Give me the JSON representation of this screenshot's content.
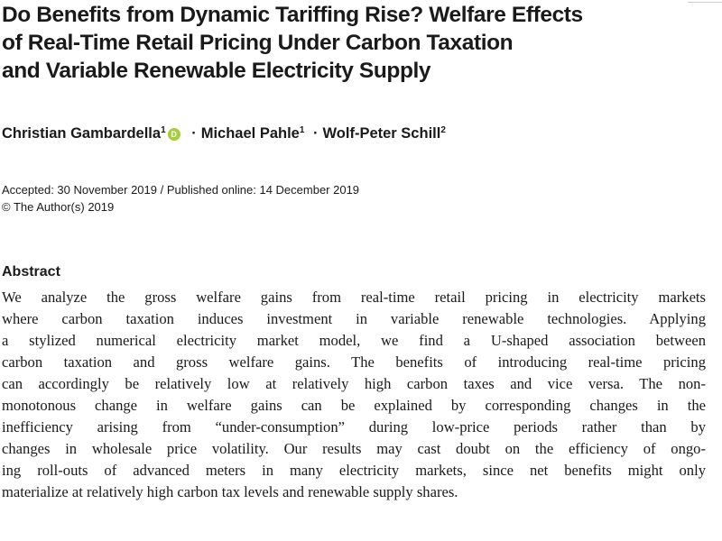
{
  "title_lines": [
    "Do Benefits from Dynamic Tariffing Rise? Welfare Effects",
    "of Real-Time Retail Pricing Under Carbon Taxation",
    "and Variable Renewable Electricity Supply"
  ],
  "authors": [
    {
      "name": "Christian Gambardella",
      "affiliation": "1",
      "orcid_label": "D"
    },
    {
      "name": "Michael Pahle",
      "affiliation": "1"
    },
    {
      "name": "Wolf-Peter Schill",
      "affiliation": "2"
    }
  ],
  "author_separator": "·",
  "dates": {
    "accepted_published": "Accepted: 30 November 2019 / Published online: 14 December 2019",
    "copyright": "© The Author(s) 2019"
  },
  "abstract": {
    "heading": "Abstract",
    "lines": [
      "We analyze the gross welfare gains from real-time retail pricing in electricity markets",
      "where carbon taxation induces investment in variable renewable technologies. Applying",
      "a stylized numerical electricity market model, we find a U-shaped association between",
      "carbon taxation and gross welfare gains. The benefits of introducing real-time pricing",
      "can accordingly be relatively low at relatively high carbon taxes and vice versa. The non-",
      "monotonous change in welfare gains can be explained by corresponding changes in the",
      "inefficiency arising from “under-consumption” during low-price periods rather than by",
      "changes in wholesale price volatility. Our results may cast doubt on the efficiency of ongo-",
      "ing roll-outs of advanced meters in many electricity markets, since net benefits might only",
      "materialize at relatively high carbon tax levels and renewable supply shares."
    ]
  },
  "colors": {
    "text": "#1a1a1a",
    "orcid": "#a6ce39"
  }
}
